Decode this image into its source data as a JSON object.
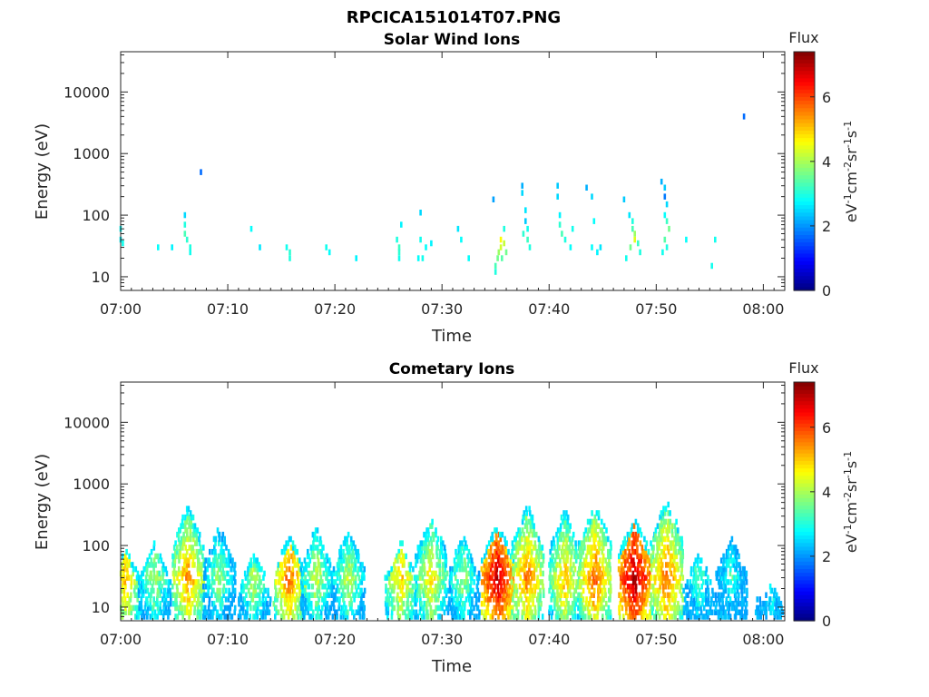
{
  "figure": {
    "title": "RPCICA151014T07.PNG"
  },
  "chart_data": [
    {
      "type": "heatmap",
      "title": "Solar Wind Ions",
      "xlabel": "Time",
      "ylabel": "Energy (eV)",
      "x_ticks": [
        "07:00",
        "07:10",
        "07:20",
        "07:30",
        "07:40",
        "07:50",
        "08:00"
      ],
      "x_range_minutes": [
        0,
        62
      ],
      "y_scale": "log",
      "y_ticks": [
        {
          "value": 10,
          "label": "10"
        },
        {
          "value": 100,
          "label": "100"
        },
        {
          "value": 1000,
          "label": "1000"
        },
        {
          "value": 10000,
          "label": "10000"
        }
      ],
      "y_range": [
        6,
        45000
      ],
      "colorbar": {
        "title": "Flux",
        "unit_label": "eV-1cm-2sr-1s-1",
        "range": [
          0,
          7.4
        ],
        "ticks": [
          0,
          2,
          4,
          6
        ],
        "colormap": "jet"
      },
      "cells": [
        [
          0.0,
          60,
          2.8
        ],
        [
          0.0,
          40,
          2.7
        ],
        [
          0.2,
          35,
          2.9
        ],
        [
          3.5,
          30,
          2.8
        ],
        [
          4.8,
          30,
          2.7
        ],
        [
          6.0,
          100,
          2.5
        ],
        [
          6.0,
          70,
          3.0
        ],
        [
          6.0,
          50,
          3.3
        ],
        [
          6.2,
          40,
          3.1
        ],
        [
          6.5,
          30,
          3.0
        ],
        [
          6.5,
          25,
          2.9
        ],
        [
          7.5,
          500,
          1.7
        ],
        [
          12.2,
          60,
          2.8
        ],
        [
          13.0,
          30,
          2.6
        ],
        [
          15.5,
          30,
          2.9
        ],
        [
          15.8,
          25,
          3.1
        ],
        [
          15.8,
          20,
          3.0
        ],
        [
          19.2,
          30,
          2.9
        ],
        [
          19.5,
          25,
          2.8
        ],
        [
          22.0,
          20,
          2.7
        ],
        [
          25.8,
          40,
          3.0
        ],
        [
          26.0,
          30,
          3.2
        ],
        [
          26.0,
          25,
          3.1
        ],
        [
          26.2,
          70,
          2.7
        ],
        [
          26.0,
          20,
          2.9
        ],
        [
          28.0,
          40,
          2.9
        ],
        [
          28.0,
          110,
          2.5
        ],
        [
          28.5,
          30,
          2.8
        ],
        [
          29.0,
          35,
          2.7
        ],
        [
          27.8,
          20,
          2.8
        ],
        [
          28.2,
          20,
          2.9
        ],
        [
          31.5,
          60,
          2.6
        ],
        [
          31.8,
          40,
          2.8
        ],
        [
          32.5,
          20,
          2.8
        ],
        [
          34.8,
          180,
          2.1
        ],
        [
          35.0,
          15,
          3.3
        ],
        [
          35.0,
          12,
          3.0
        ],
        [
          35.2,
          20,
          3.6
        ],
        [
          35.3,
          25,
          3.9
        ],
        [
          35.5,
          30,
          4.3
        ],
        [
          35.5,
          40,
          4.6
        ],
        [
          35.8,
          35,
          4.2
        ],
        [
          35.8,
          60,
          3.0
        ],
        [
          36.0,
          25,
          3.6
        ],
        [
          35.6,
          20,
          3.4
        ],
        [
          37.5,
          300,
          2.2
        ],
        [
          37.5,
          230,
          2.5
        ],
        [
          37.8,
          120,
          2.6
        ],
        [
          37.8,
          80,
          2.4
        ],
        [
          38.0,
          60,
          2.9
        ],
        [
          38.0,
          40,
          3.2
        ],
        [
          38.2,
          30,
          3.0
        ],
        [
          37.6,
          50,
          3.1
        ],
        [
          40.8,
          300,
          2.4
        ],
        [
          40.8,
          200,
          2.5
        ],
        [
          41.0,
          100,
          2.7
        ],
        [
          41.0,
          70,
          3.1
        ],
        [
          41.2,
          50,
          3.3
        ],
        [
          41.5,
          40,
          3.0
        ],
        [
          42.2,
          60,
          2.9
        ],
        [
          42.0,
          30,
          2.8
        ],
        [
          43.5,
          280,
          2.2
        ],
        [
          44.0,
          200,
          2.5
        ],
        [
          44.2,
          80,
          2.8
        ],
        [
          44.0,
          30,
          2.8
        ],
        [
          44.5,
          25,
          2.7
        ],
        [
          44.8,
          30,
          2.6
        ],
        [
          47.0,
          180,
          2.4
        ],
        [
          47.5,
          100,
          2.6
        ],
        [
          47.8,
          80,
          3.0
        ],
        [
          47.8,
          60,
          3.3
        ],
        [
          48.0,
          50,
          3.9
        ],
        [
          48.0,
          40,
          4.4
        ],
        [
          47.6,
          30,
          3.6
        ],
        [
          48.3,
          35,
          3.2
        ],
        [
          48.5,
          25,
          3.0
        ],
        [
          47.2,
          20,
          2.9
        ],
        [
          50.5,
          350,
          2.2
        ],
        [
          50.8,
          280,
          2.4
        ],
        [
          50.8,
          200,
          1.8
        ],
        [
          51.0,
          150,
          2.5
        ],
        [
          50.8,
          100,
          2.8
        ],
        [
          51.0,
          80,
          3.2
        ],
        [
          51.2,
          60,
          3.6
        ],
        [
          50.8,
          40,
          3.4
        ],
        [
          51.0,
          30,
          3.0
        ],
        [
          50.6,
          25,
          2.9
        ],
        [
          52.8,
          40,
          2.8
        ],
        [
          55.2,
          15,
          2.9
        ],
        [
          55.5,
          40,
          2.9
        ],
        [
          58.2,
          4000,
          1.7
        ]
      ]
    },
    {
      "type": "heatmap",
      "title": "Cometary Ions",
      "xlabel": "Time",
      "ylabel": "Energy (eV)",
      "x_ticks": [
        "07:00",
        "07:10",
        "07:20",
        "07:30",
        "07:40",
        "07:50",
        "08:00"
      ],
      "x_range_minutes": [
        0,
        62
      ],
      "y_scale": "log",
      "y_ticks": [
        {
          "value": 10,
          "label": "10"
        },
        {
          "value": 100,
          "label": "100"
        },
        {
          "value": 1000,
          "label": "1000"
        },
        {
          "value": 10000,
          "label": "10000"
        }
      ],
      "y_range": [
        6,
        45000
      ],
      "colorbar": {
        "title": "Flux",
        "unit_label": "eV-1cm-2sr-1s-1",
        "range": [
          0,
          7.4
        ],
        "ticks": [
          0,
          2,
          4,
          6
        ],
        "colormap": "jet"
      },
      "bursts": [
        {
          "center": 0.5,
          "peak": 5.2,
          "top": 100
        },
        {
          "center": 3.2,
          "peak": 4.2,
          "top": 120
        },
        {
          "center": 6.3,
          "peak": 5.6,
          "top": 450
        },
        {
          "center": 9.2,
          "peak": 4.0,
          "top": 200
        },
        {
          "center": 12.5,
          "peak": 4.3,
          "top": 80
        },
        {
          "center": 15.8,
          "peak": 5.8,
          "top": 150
        },
        {
          "center": 18.3,
          "peak": 4.4,
          "top": 200
        },
        {
          "center": 21.3,
          "peak": 4.3,
          "top": 180
        },
        {
          "center": 26.2,
          "peak": 5.1,
          "top": 120
        },
        {
          "center": 29.0,
          "peak": 4.9,
          "top": 300
        },
        {
          "center": 32.0,
          "peak": 4.1,
          "top": 150
        },
        {
          "center": 35.2,
          "peak": 7.0,
          "top": 250
        },
        {
          "center": 38.0,
          "peak": 5.7,
          "top": 450
        },
        {
          "center": 41.5,
          "peak": 5.2,
          "top": 380
        },
        {
          "center": 44.3,
          "peak": 5.9,
          "top": 480
        },
        {
          "center": 48.0,
          "peak": 7.2,
          "top": 300
        },
        {
          "center": 51.0,
          "peak": 5.9,
          "top": 550
        },
        {
          "center": 54.0,
          "peak": 3.6,
          "top": 80
        },
        {
          "center": 57.0,
          "peak": 3.4,
          "top": 150
        },
        {
          "center": 60.8,
          "peak": 3.5,
          "top": 25
        }
      ]
    }
  ]
}
